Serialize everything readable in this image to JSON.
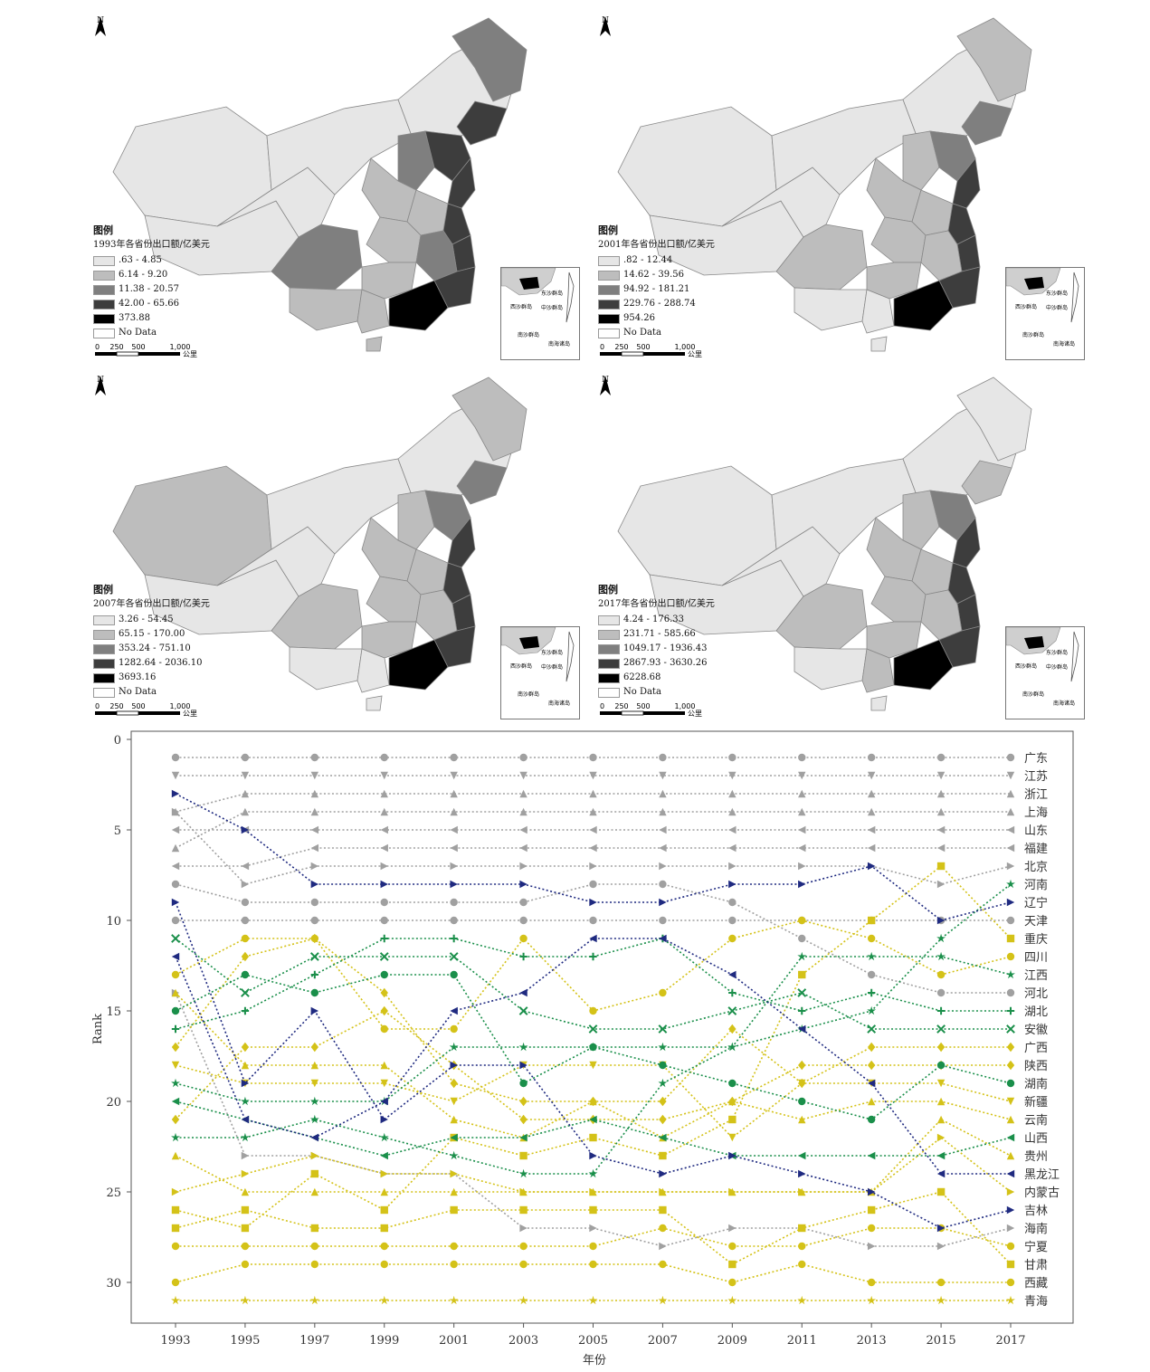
{
  "maps": [
    {
      "legend_title": "图例",
      "legend_subtitle": "1993年各省份出口额/亿美元",
      "classes": [
        ".63 - 4.85",
        "6.14 - 9.20",
        "11.38 - 20.57",
        "42.00 - 65.66",
        "373.88"
      ],
      "no_data": "No Data",
      "scale_ticks": [
        "0",
        "250",
        "500",
        "1,000"
      ],
      "scale_unit": "公里",
      "north": "N",
      "inset_labels": [
        "东沙群岛",
        "西沙群岛",
        "中沙群岛",
        "南沙群岛",
        "南海诸岛"
      ]
    },
    {
      "legend_title": "图例",
      "legend_subtitle": "2001年各省份出口额/亿美元",
      "classes": [
        ".82 - 12.44",
        "14.62 - 39.56",
        "94.92 - 181.21",
        "229.76 - 288.74",
        "954.26"
      ],
      "no_data": "No Data",
      "scale_ticks": [
        "0",
        "250",
        "500",
        "1,000"
      ],
      "scale_unit": "公里",
      "north": "N",
      "inset_labels": [
        "东沙群岛",
        "西沙群岛",
        "中沙群岛",
        "南沙群岛",
        "南海诸岛"
      ]
    },
    {
      "legend_title": "图例",
      "legend_subtitle": "2007年各省份出口额/亿美元",
      "classes": [
        "3.26 - 54.45",
        "65.15 - 170.00",
        "353.24 - 751.10",
        "1282.64 - 2036.10",
        "3693.16"
      ],
      "no_data": "No Data",
      "scale_ticks": [
        "0",
        "250",
        "500",
        "1,000"
      ],
      "scale_unit": "公里",
      "north": "N",
      "inset_labels": [
        "东沙群岛",
        "西沙群岛",
        "中沙群岛",
        "南沙群岛",
        "南海诸岛"
      ]
    },
    {
      "legend_title": "图例",
      "legend_subtitle": "2017年各省份出口额/亿美元",
      "classes": [
        "4.24 - 176.33",
        "231.71 - 585.66",
        "1049.17 - 1936.43",
        "2867.93 - 3630.26",
        "6228.68"
      ],
      "no_data": "No Data",
      "scale_ticks": [
        "0",
        "250",
        "500",
        "1,000"
      ],
      "scale_unit": "公里",
      "north": "N",
      "inset_labels": [
        "东沙群岛",
        "西沙群岛",
        "中沙群岛",
        "南沙群岛",
        "南海诸岛"
      ]
    }
  ],
  "map_class_colors": [
    "#e6e6e6",
    "#bdbdbd",
    "#7f7f7f",
    "#3d3d3d",
    "#000000"
  ],
  "chart_data": {
    "type": "line",
    "x": [
      "1993",
      "1995",
      "1997",
      "1999",
      "2001",
      "2003",
      "2005",
      "2007",
      "2009",
      "2011",
      "2013",
      "2015",
      "2017"
    ],
    "xlabel": "年份",
    "ylabel": "Rank",
    "ylim": [
      0,
      31
    ],
    "y_inverted": true,
    "yticks": [
      0,
      5,
      10,
      15,
      20,
      25,
      30
    ],
    "group_colors": {
      "grey": "#a0a0a0",
      "navy": "#1f2a80",
      "green": "#1a8f4a",
      "yellow": "#d4c218"
    },
    "series": [
      {
        "name": "广东",
        "group": "grey",
        "marker": "circle",
        "values": [
          1,
          1,
          1,
          1,
          1,
          1,
          1,
          1,
          1,
          1,
          1,
          1,
          1
        ]
      },
      {
        "name": "江苏",
        "group": "grey",
        "marker": "tri-down",
        "values": [
          2,
          2,
          2,
          2,
          2,
          2,
          2,
          2,
          2,
          2,
          2,
          2,
          2
        ]
      },
      {
        "name": "浙江",
        "group": "grey",
        "marker": "tri-up",
        "values": [
          4,
          3,
          3,
          3,
          3,
          3,
          3,
          3,
          3,
          3,
          3,
          3,
          3
        ]
      },
      {
        "name": "上海",
        "group": "grey",
        "marker": "tri-up",
        "values": [
          6,
          4,
          4,
          4,
          4,
          4,
          4,
          4,
          4,
          4,
          4,
          4,
          4
        ]
      },
      {
        "name": "山东",
        "group": "grey",
        "marker": "tri-left",
        "values": [
          5,
          5,
          5,
          5,
          5,
          5,
          5,
          5,
          5,
          5,
          5,
          5,
          5
        ]
      },
      {
        "name": "福建",
        "group": "grey",
        "marker": "tri-left",
        "values": [
          7,
          7,
          6,
          6,
          6,
          6,
          6,
          6,
          6,
          6,
          6,
          6,
          6
        ]
      },
      {
        "name": "北京",
        "group": "grey",
        "marker": "tri-right",
        "values": [
          4,
          8,
          7,
          7,
          7,
          7,
          7,
          7,
          7,
          7,
          7,
          8,
          7
        ]
      },
      {
        "name": "河南",
        "group": "green",
        "marker": "star",
        "values": [
          19,
          20,
          20,
          20,
          17,
          17,
          17,
          17,
          17,
          16,
          15,
          11,
          8
        ]
      },
      {
        "name": "辽宁",
        "group": "navy",
        "marker": "tri-right",
        "values": [
          3,
          5,
          8,
          8,
          8,
          8,
          9,
          9,
          8,
          8,
          7,
          10,
          9
        ]
      },
      {
        "name": "天津",
        "group": "grey",
        "marker": "circle",
        "values": [
          10,
          10,
          10,
          10,
          10,
          10,
          10,
          10,
          10,
          10,
          10,
          10,
          10
        ]
      },
      {
        "name": "重庆",
        "group": "yellow",
        "marker": "square",
        "values": [
          26,
          27,
          24,
          26,
          22,
          23,
          22,
          23,
          21,
          13,
          10,
          7,
          11
        ]
      },
      {
        "name": "四川",
        "group": "yellow",
        "marker": "circle",
        "values": [
          13,
          11,
          11,
          16,
          16,
          11,
          15,
          14,
          11,
          10,
          11,
          13,
          12
        ]
      },
      {
        "name": "江西",
        "group": "green",
        "marker": "star",
        "values": [
          22,
          22,
          21,
          22,
          23,
          24,
          24,
          19,
          17,
          12,
          12,
          12,
          13
        ]
      },
      {
        "name": "河北",
        "group": "grey",
        "marker": "circle",
        "values": [
          8,
          9,
          9,
          9,
          9,
          9,
          8,
          8,
          9,
          11,
          13,
          14,
          14
        ]
      },
      {
        "name": "湖北",
        "group": "green",
        "marker": "plus",
        "values": [
          16,
          15,
          13,
          11,
          11,
          12,
          12,
          11,
          14,
          15,
          14,
          15,
          15
        ]
      },
      {
        "name": "安徽",
        "group": "green",
        "marker": "x",
        "values": [
          11,
          14,
          12,
          12,
          12,
          15,
          16,
          16,
          15,
          14,
          16,
          16,
          16
        ]
      },
      {
        "name": "广西",
        "group": "yellow",
        "marker": "diamond",
        "values": [
          17,
          12,
          11,
          14,
          19,
          20,
          20,
          20,
          16,
          19,
          17,
          17,
          17
        ]
      },
      {
        "name": "陕西",
        "group": "yellow",
        "marker": "diamond",
        "values": [
          21,
          17,
          17,
          15,
          18,
          21,
          21,
          21,
          20,
          18,
          18,
          18,
          18
        ]
      },
      {
        "name": "湖南",
        "group": "green",
        "marker": "circle",
        "values": [
          15,
          13,
          14,
          13,
          13,
          19,
          17,
          18,
          19,
          20,
          21,
          18,
          19
        ]
      },
      {
        "name": "新疆",
        "group": "yellow",
        "marker": "tri-down",
        "values": [
          18,
          19,
          19,
          19,
          20,
          18,
          18,
          18,
          22,
          19,
          19,
          19,
          20
        ]
      },
      {
        "name": "云南",
        "group": "yellow",
        "marker": "tri-up",
        "values": [
          14,
          18,
          18,
          18,
          21,
          22,
          20,
          22,
          20,
          21,
          20,
          20,
          21
        ]
      },
      {
        "name": "山西",
        "group": "green",
        "marker": "tri-left",
        "values": [
          20,
          21,
          22,
          23,
          22,
          22,
          21,
          22,
          23,
          23,
          23,
          23,
          22
        ]
      },
      {
        "name": "贵州",
        "group": "yellow",
        "marker": "tri-up",
        "values": [
          23,
          25,
          25,
          25,
          25,
          25,
          25,
          25,
          25,
          25,
          25,
          21,
          23
        ]
      },
      {
        "name": "黑龙江",
        "group": "navy",
        "marker": "tri-left",
        "values": [
          12,
          21,
          22,
          20,
          15,
          14,
          11,
          11,
          13,
          16,
          19,
          24,
          24
        ]
      },
      {
        "name": "内蒙古",
        "group": "yellow",
        "marker": "tri-right",
        "values": [
          25,
          24,
          23,
          24,
          24,
          25,
          25,
          25,
          25,
          25,
          25,
          22,
          25
        ]
      },
      {
        "name": "吉林",
        "group": "navy",
        "marker": "tri-right",
        "values": [
          9,
          19,
          15,
          21,
          18,
          18,
          23,
          24,
          23,
          24,
          25,
          27,
          26
        ]
      },
      {
        "name": "海南",
        "group": "grey",
        "marker": "tri-right",
        "values": [
          14,
          23,
          23,
          24,
          24,
          27,
          27,
          28,
          27,
          27,
          28,
          28,
          27
        ]
      },
      {
        "name": "宁夏",
        "group": "yellow",
        "marker": "circle",
        "values": [
          28,
          28,
          28,
          28,
          28,
          28,
          28,
          27,
          28,
          28,
          27,
          27,
          28
        ]
      },
      {
        "name": "甘肃",
        "group": "yellow",
        "marker": "square",
        "values": [
          27,
          26,
          27,
          27,
          26,
          26,
          26,
          26,
          29,
          27,
          26,
          25,
          29
        ]
      },
      {
        "name": "西藏",
        "group": "yellow",
        "marker": "circle",
        "values": [
          30,
          29,
          29,
          29,
          29,
          29,
          29,
          29,
          30,
          29,
          30,
          30,
          30
        ]
      },
      {
        "name": "青海",
        "group": "yellow",
        "marker": "star",
        "values": [
          31,
          31,
          31,
          31,
          31,
          31,
          31,
          31,
          31,
          31,
          31,
          31,
          31
        ]
      }
    ]
  }
}
